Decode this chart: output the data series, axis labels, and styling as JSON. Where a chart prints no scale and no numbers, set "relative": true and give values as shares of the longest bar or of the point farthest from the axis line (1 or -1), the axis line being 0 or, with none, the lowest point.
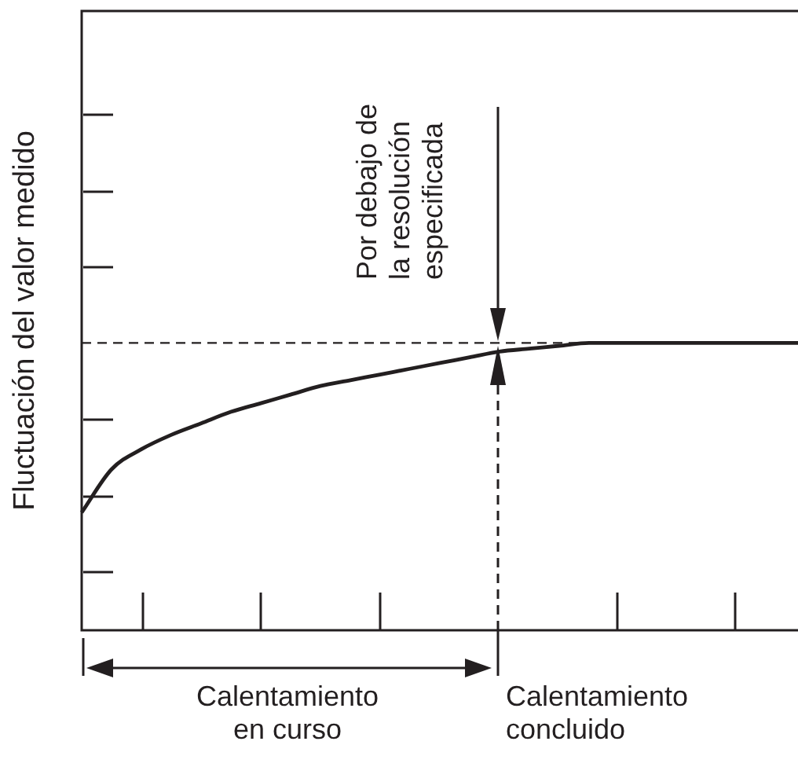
{
  "chart_data": {
    "type": "line",
    "relative": true,
    "ylabel": "Fluctuación del valor medido",
    "categories": [
      null,
      null,
      null,
      null,
      null,
      null,
      null,
      null,
      null,
      null,
      null,
      null,
      null,
      null,
      null,
      null,
      null,
      null,
      null,
      null,
      null,
      null,
      null,
      null,
      null
    ],
    "values": [
      0.41,
      0.56,
      0.63,
      0.68,
      0.72,
      0.76,
      0.79,
      0.82,
      0.85,
      0.87,
      0.89,
      0.91,
      0.93,
      0.95,
      0.97,
      0.98,
      0.99,
      1,
      1,
      1,
      1,
      1,
      1,
      1,
      1
    ],
    "color": "#231f20",
    "marker": "none",
    "line_style": "solid",
    "ref_lines": [
      {
        "axis": "y",
        "value": 1,
        "line_style": "dashed",
        "color": "#231f20"
      }
    ],
    "annotations": [
      "Por debajo de\nla resolución\nespecificada",
      "Calentamiento\nen curso",
      "Calentamiento\nconcluido"
    ]
  }
}
